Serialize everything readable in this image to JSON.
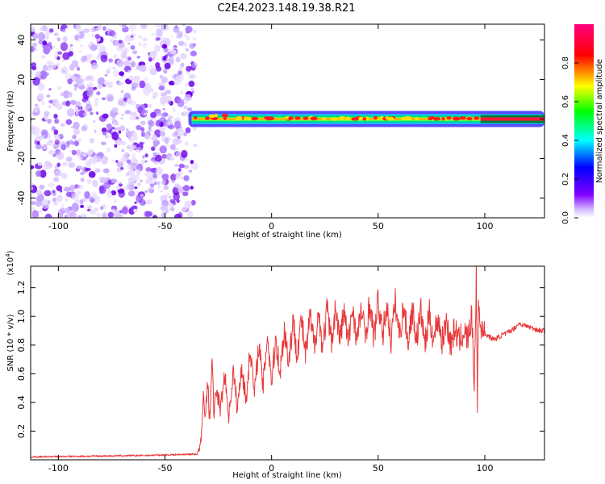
{
  "figure": {
    "title": "C2E4.2023.148.19.38.R21"
  },
  "chart_data": [
    {
      "type": "heatmap",
      "panel": "spectrogram",
      "xlabel": "Height of straight line (km)",
      "ylabel": "Frequency (Hz)",
      "xlim": [
        -113,
        128
      ],
      "ylim": [
        -50,
        48
      ],
      "xticks": [
        -100,
        -50,
        0,
        50,
        100
      ],
      "xtick_labels": [
        "-100",
        "-50",
        "0",
        "50",
        "100"
      ],
      "yticks": [
        40,
        20,
        0,
        -20,
        -40
      ],
      "ytick_labels": [
        "40",
        "20",
        "0",
        "-20",
        "-40"
      ],
      "noise_region_x": [
        -113,
        -38
      ],
      "signal_x": [
        -39,
        128
      ],
      "signal_frequency_hz": 0,
      "colorbar": {
        "label": "Normalized spectral amplitude",
        "range": [
          0,
          1
        ],
        "ticks": [
          0.0,
          0.2,
          0.4,
          0.6,
          0.8
        ],
        "tick_labels": [
          "0.0",
          "0.2",
          "0.4",
          "0.6",
          "0.8"
        ],
        "colors": [
          "#ffffff",
          "#8000ff",
          "#0000ff",
          "#00ffff",
          "#00ff00",
          "#ffff00",
          "#ff0000",
          "#ff0080"
        ]
      }
    },
    {
      "type": "line",
      "panel": "snr",
      "xlabel": "Height of straight line (km)",
      "ylabel": "SNR (10 * v/v)",
      "exponent_label": "(x10",
      "exponent_power": "4",
      "exponent_close": ")",
      "xlim": [
        -113,
        128
      ],
      "ylim": [
        0,
        1.35
      ],
      "y_unit_scale": "x10^4",
      "xticks": [
        -100,
        -50,
        0,
        50,
        100
      ],
      "xtick_labels": [
        "-100",
        "-50",
        "0",
        "50",
        "100"
      ],
      "yticks": [
        0.2,
        0.4,
        0.6,
        0.8,
        1.0,
        1.2
      ],
      "ytick_labels": [
        "0.2",
        "0.4",
        "0.6",
        "0.8",
        "1.0",
        "1.2"
      ],
      "series_color": "#e8383a",
      "x": [
        -113,
        -60,
        -35,
        -33,
        -32,
        -31,
        -30,
        -29,
        -28,
        -27,
        -26,
        -24,
        -22,
        -20,
        -18,
        -16,
        -14,
        -12,
        -10,
        -8,
        -6,
        -4,
        -2,
        0,
        2,
        4,
        6,
        8,
        10,
        12,
        14,
        16,
        18,
        20,
        22,
        24,
        26,
        28,
        30,
        32,
        34,
        36,
        38,
        40,
        42,
        44,
        46,
        48,
        50,
        52,
        54,
        56,
        58,
        60,
        62,
        64,
        66,
        68,
        70,
        72,
        74,
        76,
        78,
        80,
        82,
        84,
        86,
        88,
        90,
        92,
        94,
        95,
        96,
        96.5,
        97,
        98,
        99,
        100,
        102,
        104,
        106,
        108,
        110,
        112,
        114,
        116,
        118,
        120,
        122,
        124,
        126,
        128
      ],
      "y": [
        0.02,
        0.03,
        0.04,
        0.12,
        0.45,
        0.3,
        0.55,
        0.25,
        0.72,
        0.3,
        0.5,
        0.35,
        0.6,
        0.3,
        0.62,
        0.35,
        0.66,
        0.4,
        0.78,
        0.45,
        0.82,
        0.5,
        0.88,
        0.55,
        0.85,
        0.6,
        0.92,
        0.68,
        0.96,
        0.75,
        0.98,
        0.72,
        1.0,
        0.8,
        1.02,
        0.78,
        1.05,
        0.82,
        1.06,
        0.84,
        1.04,
        0.8,
        1.08,
        0.82,
        1.05,
        0.86,
        1.1,
        0.84,
        1.12,
        0.85,
        1.08,
        0.83,
        1.1,
        0.86,
        1.07,
        0.82,
        1.05,
        0.84,
        1.04,
        0.8,
        1.02,
        0.83,
        1.0,
        0.82,
        0.98,
        0.8,
        0.92,
        0.82,
        0.9,
        0.84,
        1.0,
        0.5,
        1.32,
        0.35,
        1.1,
        0.9,
        0.95,
        0.88,
        0.86,
        0.84,
        0.85,
        0.87,
        0.88,
        0.9,
        0.92,
        0.95,
        0.94,
        0.93,
        0.92,
        0.91,
        0.9,
        0.9
      ]
    }
  ]
}
